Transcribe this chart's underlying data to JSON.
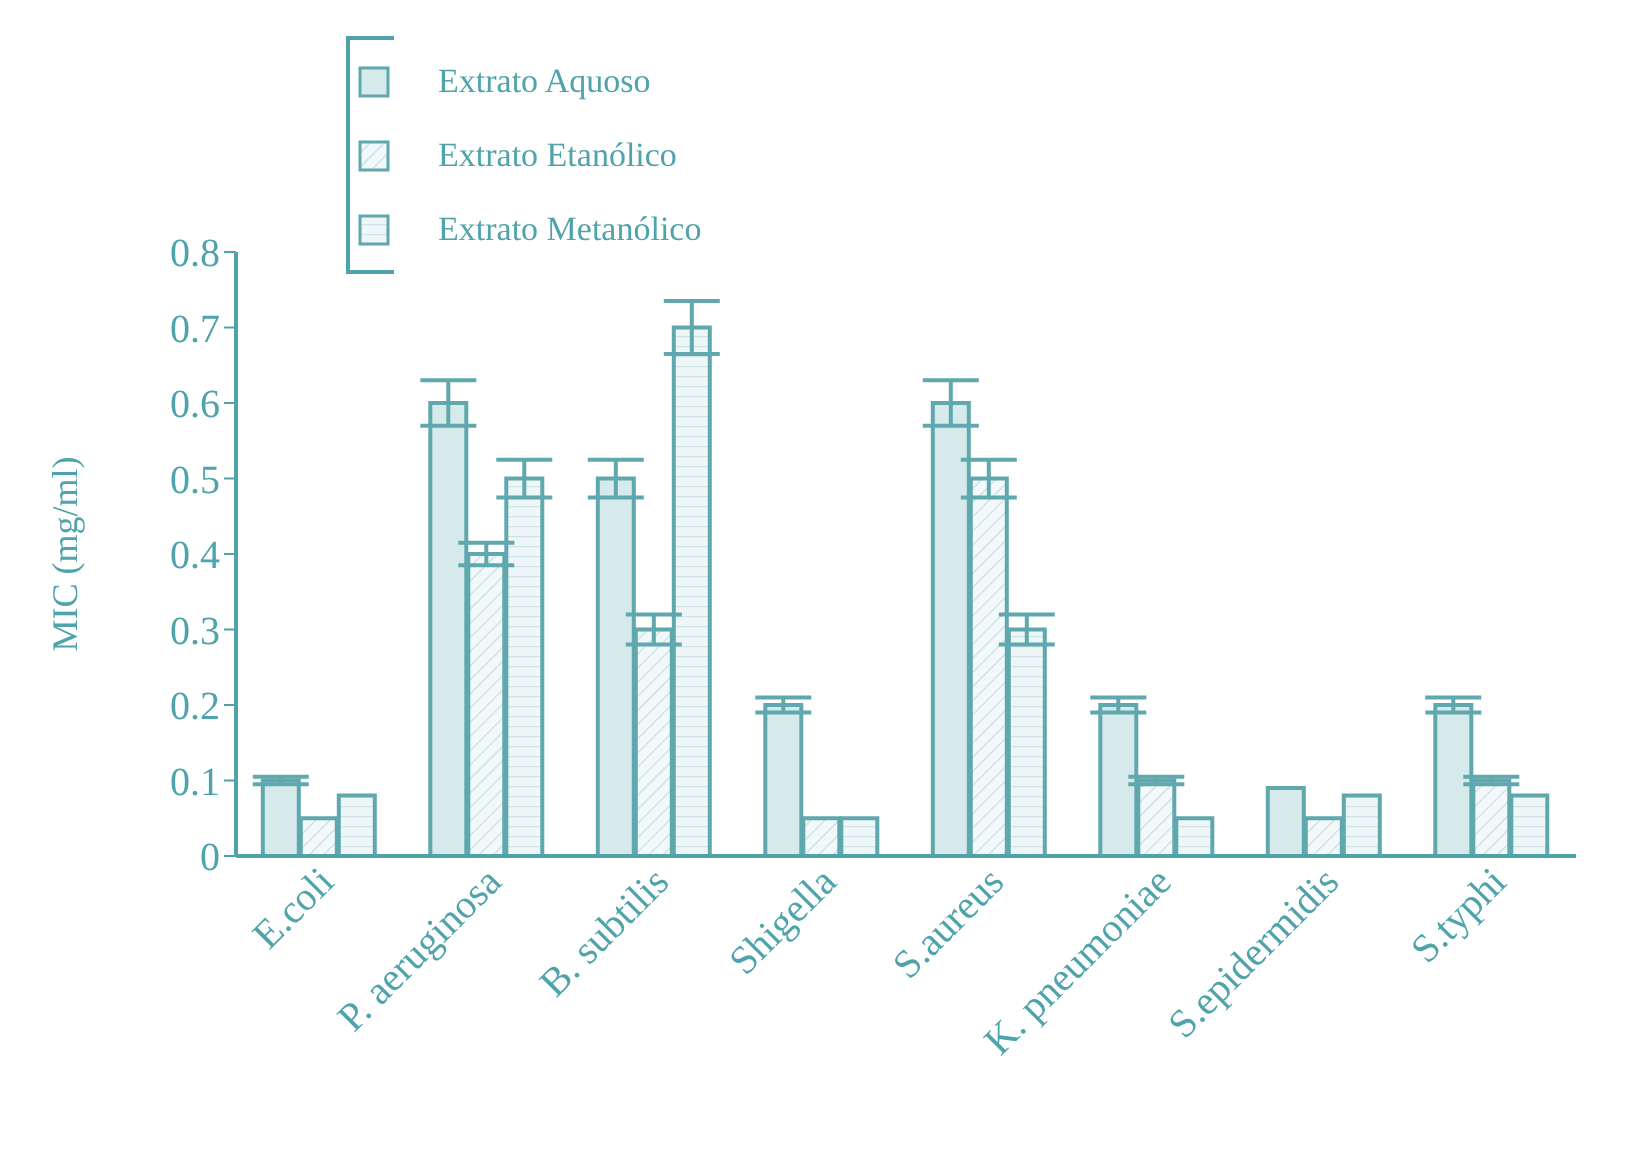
{
  "chart_data": {
    "type": "bar",
    "ylabel": "MIC (mg/ml)",
    "categories": [
      "E.coli",
      "P. aeruginosa",
      "B. subtilis",
      "Shigella",
      "S.aureus",
      "K. pneumoniae",
      "S.epidermidis",
      "S.typhi"
    ],
    "series": [
      {
        "name": "Extrato Aquoso",
        "color": "#5fa8ae",
        "values": [
          0.1,
          0.6,
          0.5,
          0.2,
          0.6,
          0.2,
          0.09,
          0.2
        ],
        "errors": [
          0.005,
          0.03,
          0.025,
          0.01,
          0.03,
          0.01,
          null,
          0.01
        ]
      },
      {
        "name": "Extrato Etanólico",
        "color": "#5fa8ae",
        "values": [
          0.05,
          0.4,
          0.3,
          0.05,
          0.5,
          0.1,
          0.05,
          0.1
        ],
        "errors": [
          null,
          0.015,
          0.02,
          null,
          0.025,
          0.005,
          null,
          0.005
        ]
      },
      {
        "name": "Extrato Metanólico",
        "color": "#5fa8ae",
        "values": [
          0.08,
          0.5,
          0.7,
          0.05,
          0.3,
          0.05,
          0.08,
          0.08
        ],
        "errors": [
          null,
          0.025,
          0.035,
          null,
          0.02,
          null,
          null,
          null
        ]
      }
    ],
    "ylim": [
      0,
      0.8
    ],
    "yticks": [
      0,
      0.1,
      0.2,
      0.3,
      0.4,
      0.5,
      0.6,
      0.7,
      0.8
    ],
    "grid": false,
    "legend": "top left"
  }
}
